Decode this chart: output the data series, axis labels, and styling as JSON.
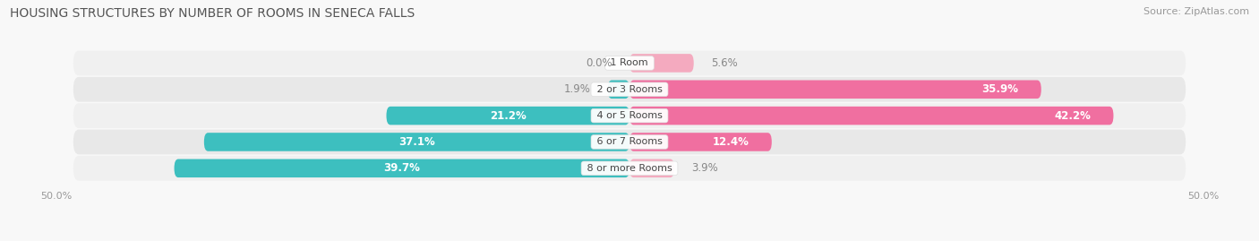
{
  "title": "HOUSING STRUCTURES BY NUMBER OF ROOMS IN SENECA FALLS",
  "source": "Source: ZipAtlas.com",
  "categories": [
    "1 Room",
    "2 or 3 Rooms",
    "4 or 5 Rooms",
    "6 or 7 Rooms",
    "8 or more Rooms"
  ],
  "owner_values": [
    0.0,
    1.9,
    21.2,
    37.1,
    39.7
  ],
  "renter_values": [
    5.6,
    35.9,
    42.2,
    12.4,
    3.9
  ],
  "owner_color": "#3DBFBF",
  "renter_color_large": "#F06FA0",
  "renter_color_small": "#F4AABF",
  "row_bg_color_odd": "#F0F0F0",
  "row_bg_color_even": "#E8E8E8",
  "max_val": 50.0,
  "title_fontsize": 10,
  "source_fontsize": 8,
  "label_fontsize": 8.5,
  "cat_fontsize": 8,
  "renter_large_threshold": 10
}
